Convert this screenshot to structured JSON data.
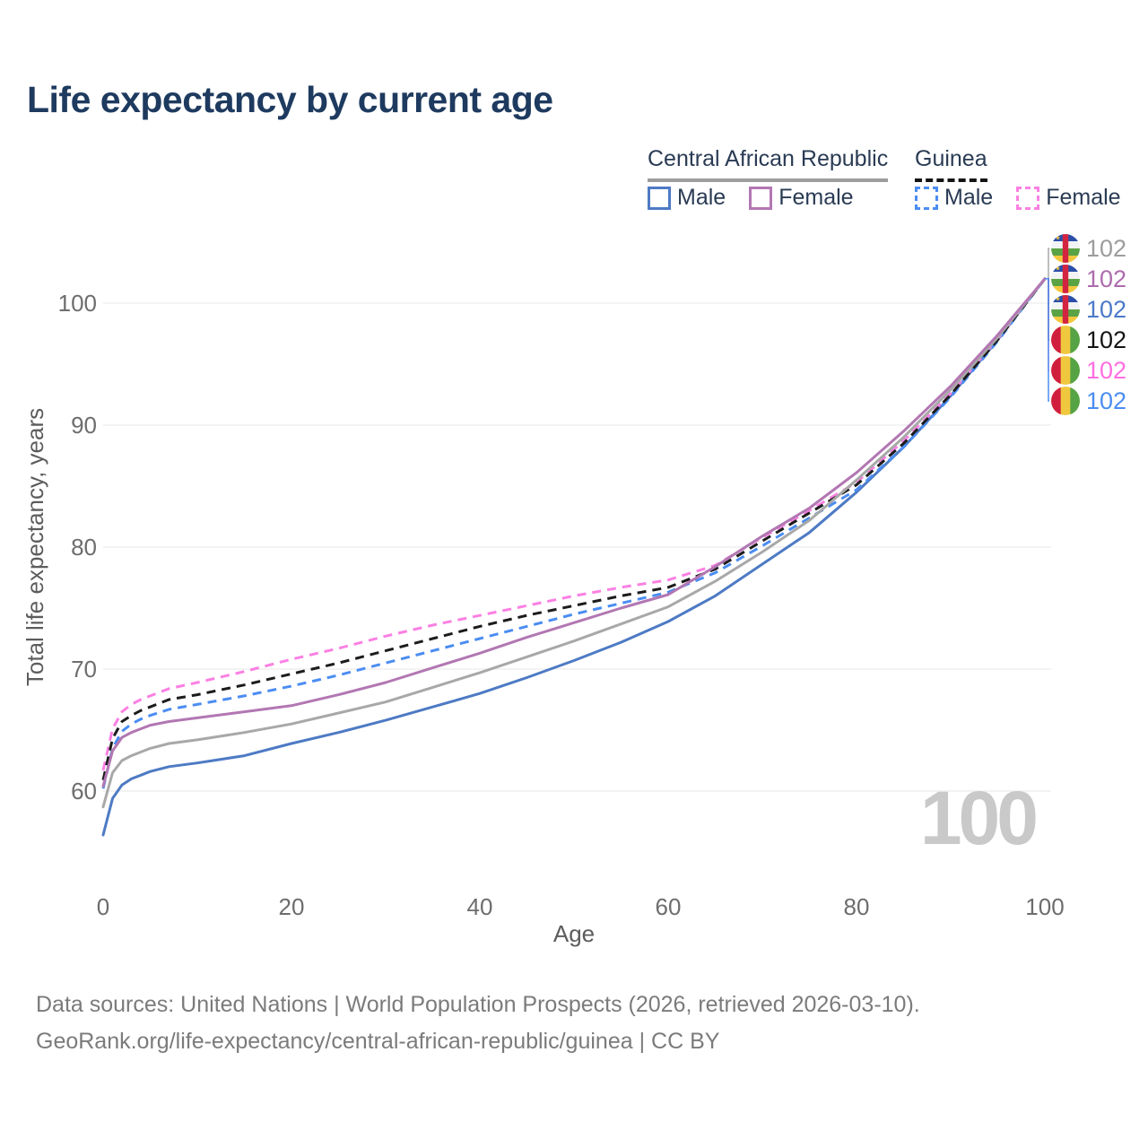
{
  "title": "Life expectancy by current age",
  "legend": {
    "car": {
      "label": "Central African Republic",
      "male": "Male",
      "female": "Female"
    },
    "guinea": {
      "label": "Guinea",
      "male": "Male",
      "female": "Female"
    }
  },
  "watermark": "100",
  "footer": {
    "line1": "Data sources: United Nations | World Population Prospects (2026, retrieved 2026-03-10).",
    "line2": "GeoRank.org/life-expectancy/central-african-republic/guinea | CC BY"
  },
  "colors": {
    "title_text": "#1e3a5f",
    "legend_text": "#2a3b54",
    "axis_text": "#6d6d6d",
    "axis_label_text": "#5c5c5c",
    "gridline": "#ececec",
    "watermark_text": "#c9c9c9",
    "footer_text": "#7b7b7b"
  },
  "chart_data": {
    "type": "line",
    "title": "Life expectancy by current age",
    "xlabel": "Age",
    "ylabel": "Total life expectancy, years",
    "xlim": [
      0,
      100
    ],
    "ylim": [
      54,
      104
    ],
    "xticks": [
      0,
      20,
      40,
      60,
      80,
      100
    ],
    "yticks": [
      60,
      70,
      80,
      90,
      100
    ],
    "grid": true,
    "legend_position": "top-right",
    "x": [
      0,
      1,
      2,
      3,
      4,
      5,
      7,
      10,
      15,
      20,
      25,
      30,
      35,
      40,
      45,
      50,
      55,
      60,
      65,
      70,
      75,
      80,
      85,
      90,
      95,
      100
    ],
    "series": [
      {
        "name": "Central African Republic",
        "sex": "all",
        "line_style": "solid",
        "color": "#a8a8a8",
        "flag": "car",
        "label_color": "#9c9c9c",
        "end_label": "102",
        "label_row": 0,
        "values": [
          58.7,
          61.5,
          62.5,
          62.9,
          63.2,
          63.5,
          63.9,
          64.2,
          64.8,
          65.5,
          66.4,
          67.3,
          68.5,
          69.7,
          71.0,
          72.3,
          73.7,
          75.1,
          77.2,
          79.6,
          82.2,
          85.5,
          89.0,
          92.9,
          97.2,
          102
        ]
      },
      {
        "name": "Central African Republic Female",
        "sex": "female",
        "line_style": "solid",
        "color": "#b277b2",
        "flag": "car",
        "label_color": "#ad6cad",
        "end_label": "102",
        "label_row": 1,
        "values": [
          60.4,
          63.3,
          64.4,
          64.8,
          65.1,
          65.4,
          65.7,
          66.0,
          66.5,
          67.0,
          67.9,
          68.9,
          70.1,
          71.3,
          72.6,
          73.8,
          75.0,
          76.1,
          78.4,
          80.9,
          83.2,
          86.1,
          89.5,
          93.2,
          97.4,
          102
        ]
      },
      {
        "name": "Central African Republic Male",
        "sex": "male",
        "line_style": "solid",
        "color": "#4d7ac4",
        "flag": "car",
        "label_color": "#4b79c8",
        "end_label": "102",
        "label_row": 2,
        "values": [
          56.4,
          59.4,
          60.5,
          61.0,
          61.3,
          61.6,
          62.0,
          62.3,
          62.9,
          63.9,
          64.8,
          65.8,
          66.9,
          68.0,
          69.3,
          70.7,
          72.2,
          73.9,
          76.0,
          78.6,
          81.2,
          84.5,
          88.2,
          92.4,
          97.0,
          102
        ]
      },
      {
        "name": "Guinea",
        "sex": "all",
        "line_style": "dashed",
        "color": "#1c1c1c",
        "flag": "guinea",
        "label_color": "#141414",
        "end_label": "102",
        "label_row": 3,
        "values": [
          60.9,
          64.3,
          65.7,
          66.2,
          66.6,
          66.9,
          67.5,
          67.9,
          68.7,
          69.6,
          70.5,
          71.5,
          72.5,
          73.5,
          74.4,
          75.2,
          76.0,
          76.7,
          78.2,
          80.5,
          82.8,
          85.1,
          88.5,
          92.5,
          97.0,
          102
        ]
      },
      {
        "name": "Guinea Female",
        "sex": "female",
        "line_style": "dashed",
        "color": "#fb80e3",
        "flag": "guinea",
        "label_color": "#ff6ee0",
        "end_label": "102",
        "label_row": 4,
        "values": [
          61.7,
          65.1,
          66.5,
          67.1,
          67.5,
          67.8,
          68.4,
          68.9,
          69.8,
          70.8,
          71.7,
          72.7,
          73.6,
          74.4,
          75.2,
          76.0,
          76.7,
          77.3,
          78.5,
          80.8,
          83.0,
          85.3,
          88.7,
          92.6,
          97.1,
          102
        ]
      },
      {
        "name": "Guinea Male",
        "sex": "male",
        "line_style": "dashed",
        "color": "#4b8df2",
        "flag": "guinea",
        "label_color": "#4b8df2",
        "end_label": "102",
        "label_row": 5,
        "values": [
          60.2,
          63.5,
          64.9,
          65.5,
          65.9,
          66.2,
          66.7,
          67.1,
          67.8,
          68.6,
          69.5,
          70.5,
          71.5,
          72.5,
          73.5,
          74.5,
          75.4,
          76.3,
          77.9,
          80.1,
          82.4,
          84.7,
          88.2,
          92.3,
          96.9,
          102
        ]
      }
    ]
  }
}
